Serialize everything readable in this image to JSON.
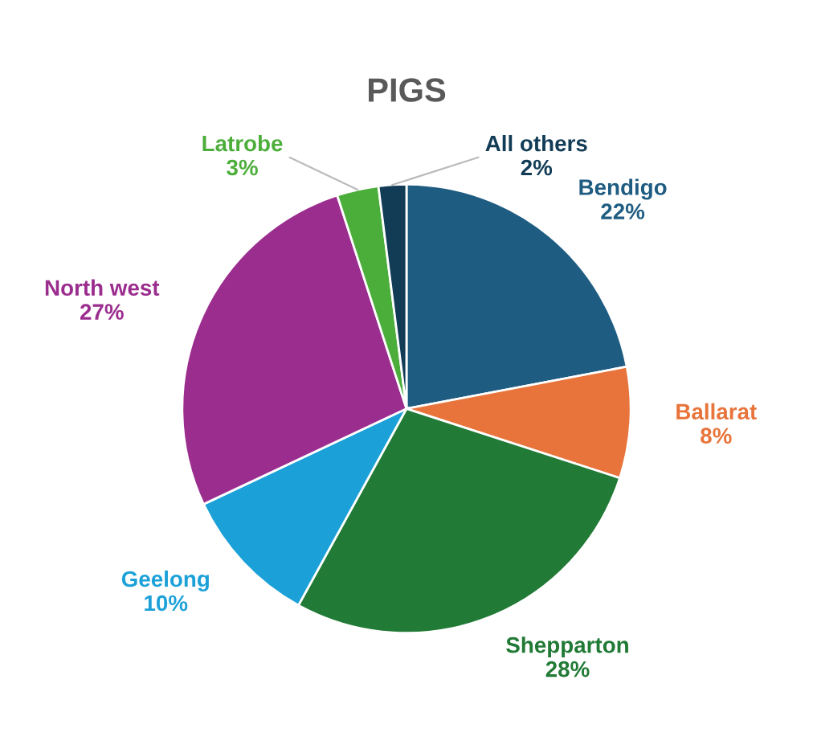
{
  "chart_data": {
    "type": "pie",
    "title": "PIGS",
    "categories": [
      "Bendigo",
      "Ballarat",
      "Shepparton",
      "Geelong",
      "North west",
      "Latrobe",
      "All others"
    ],
    "values": [
      22,
      8,
      28,
      10,
      27,
      3,
      2
    ],
    "colors": [
      "#1f5c82",
      "#e8743b",
      "#217a35",
      "#1ba1d8",
      "#9b2d8e",
      "#4cae3a",
      "#123c56"
    ],
    "value_labels": [
      "22%",
      "8%",
      "28%",
      "10%",
      "27%",
      "3%",
      "2%"
    ],
    "legend": false
  }
}
